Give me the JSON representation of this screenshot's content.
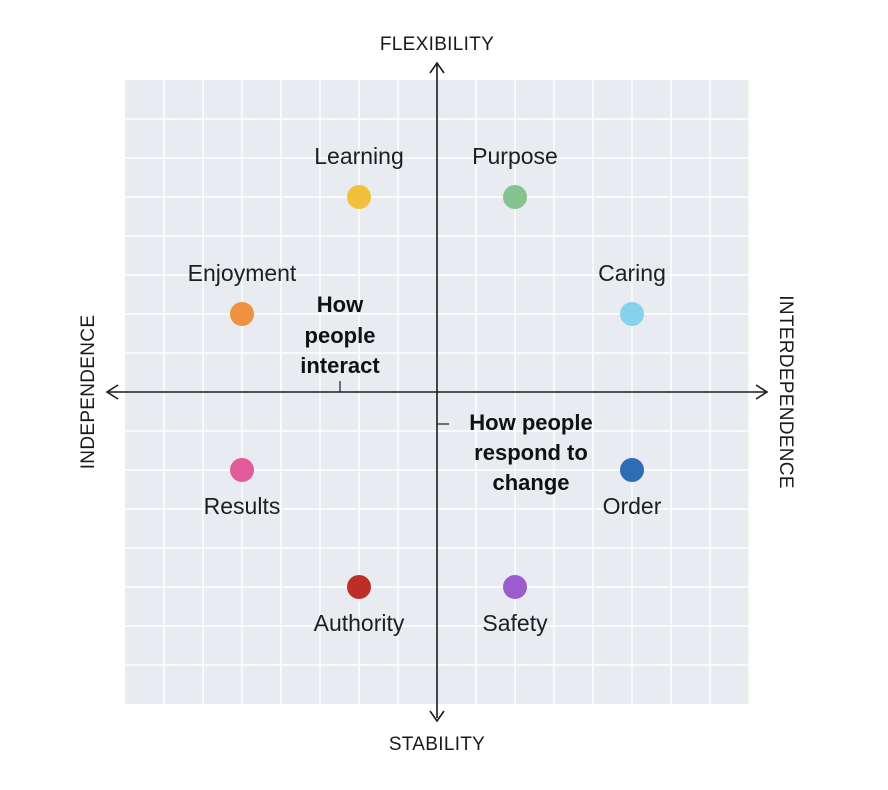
{
  "axes": {
    "top": "FLEXIBILITY",
    "bottom": "STABILITY",
    "left": "INDEPENDENCE",
    "right": "INTERDEPENDENCE"
  },
  "axis_descriptions": {
    "horizontal": [
      "How",
      "people",
      "interact"
    ],
    "vertical": [
      "How people",
      "respond to",
      "change"
    ]
  },
  "styles": [
    {
      "label": "Learning",
      "color": "#f2c13c",
      "x": -2,
      "y": 5
    },
    {
      "label": "Purpose",
      "color": "#86c28e",
      "x": 2,
      "y": 5
    },
    {
      "label": "Enjoyment",
      "color": "#ef9140",
      "x": -5,
      "y": 2
    },
    {
      "label": "Caring",
      "color": "#86d2ec",
      "x": 5,
      "y": 2
    },
    {
      "label": "Results",
      "color": "#e25b9a",
      "x": -5,
      "y": -2
    },
    {
      "label": "Order",
      "color": "#2f6cb3",
      "x": 5,
      "y": -2
    },
    {
      "label": "Authority",
      "color": "#bd2e28",
      "x": -2,
      "y": -5
    },
    {
      "label": "Safety",
      "color": "#9c5ccc",
      "x": 2,
      "y": -5
    }
  ]
}
